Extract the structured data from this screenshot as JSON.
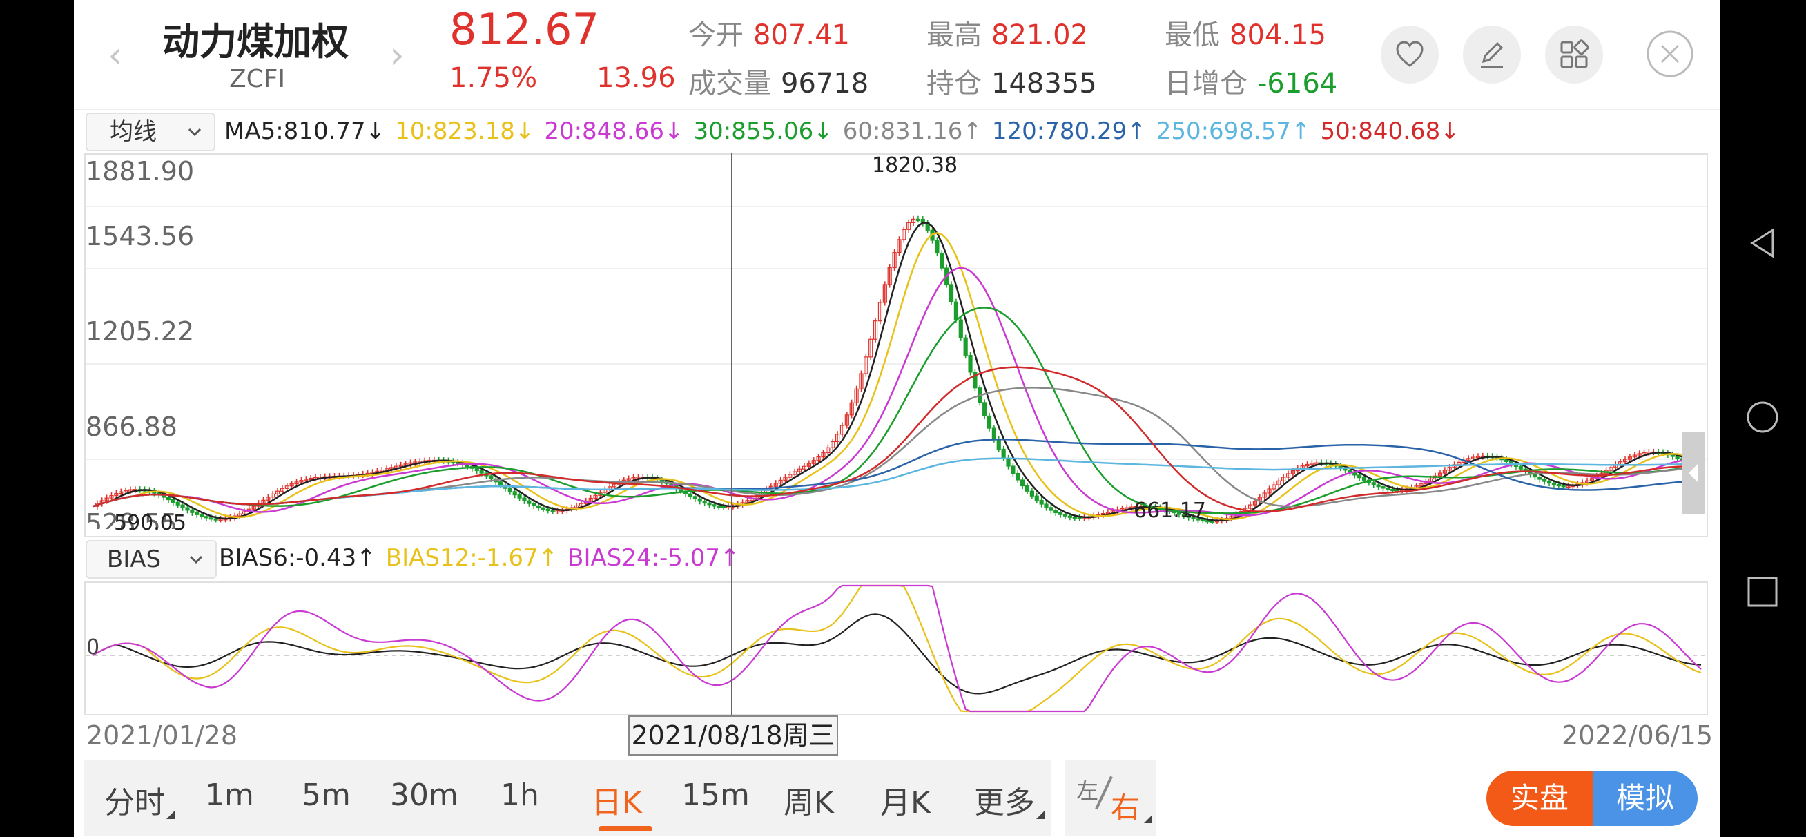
{
  "header": {
    "title": "动力煤加权",
    "code": "ZCFI",
    "price": "812.67",
    "change_pct": "1.75%",
    "change_abs": "13.96",
    "stats": [
      {
        "label": "今开",
        "value": "807.41",
        "color": "red"
      },
      {
        "label": "最高",
        "value": "821.02",
        "color": "red"
      },
      {
        "label": "最低",
        "value": "804.15",
        "color": "red"
      },
      {
        "label": "成交量",
        "value": "96718",
        "color": "dark"
      },
      {
        "label": "持仓",
        "value": "148355",
        "color": "dark"
      },
      {
        "label": "日增仓",
        "value": "-6164",
        "color": "green"
      }
    ]
  },
  "ma_row": {
    "selector": "均线",
    "items": [
      {
        "text": "MA5:810.77↓",
        "color": "#222222"
      },
      {
        "text": "10:823.18↓",
        "color": "#e8c11a"
      },
      {
        "text": "20:848.66↓",
        "color": "#c93ad2"
      },
      {
        "text": "30:855.06↓",
        "color": "#1b9e2d"
      },
      {
        "text": "60:831.16↑",
        "color": "#888888"
      },
      {
        "text": "120:780.29↑",
        "color": "#2a63a8"
      },
      {
        "text": "250:698.57↑",
        "color": "#5cb6e0"
      },
      {
        "text": "50:840.68↓",
        "color": "#d22a2a"
      }
    ]
  },
  "bias_row": {
    "selector": "BIAS",
    "items": [
      {
        "text": "BIAS6:-0.43↑",
        "color": "#222222"
      },
      {
        "text": "BIAS12:-1.67↑",
        "color": "#e8c11a"
      },
      {
        "text": "BIAS24:-5.07↑",
        "color": "#c93ad2"
      }
    ]
  },
  "price_chart": {
    "y_labels": [
      "1881.90",
      "1543.56",
      "1205.22",
      "866.88",
      "528.55"
    ],
    "max_label": "1820.38",
    "min_label": "661.17",
    "start_label": "590.05"
  },
  "bias_chart": {
    "zero_label": "0"
  },
  "dates": {
    "start": "2021/01/28",
    "end": "2022/06/15",
    "cursor": "2021/08/18周三"
  },
  "tabs": [
    {
      "label": "分时",
      "menu": true
    },
    {
      "label": "1m"
    },
    {
      "label": "5m"
    },
    {
      "label": "30m"
    },
    {
      "label": "1h"
    },
    {
      "label": "日K",
      "active": true
    },
    {
      "label": "15m"
    },
    {
      "label": "周K"
    },
    {
      "label": "月K"
    },
    {
      "label": "更多",
      "menu": true
    }
  ],
  "lr_toggle": {
    "left": "左",
    "right": "右"
  },
  "trade_buttons": {
    "real": "实盘",
    "sim": "模拟"
  },
  "icons": {
    "watch": "heart-icon",
    "edit": "pencil-icon",
    "grid": "grid-icon",
    "close": "close-icon"
  },
  "colors": {
    "up": "#e0322c",
    "down": "#1b9e2d",
    "accent": "#f0641e"
  }
}
